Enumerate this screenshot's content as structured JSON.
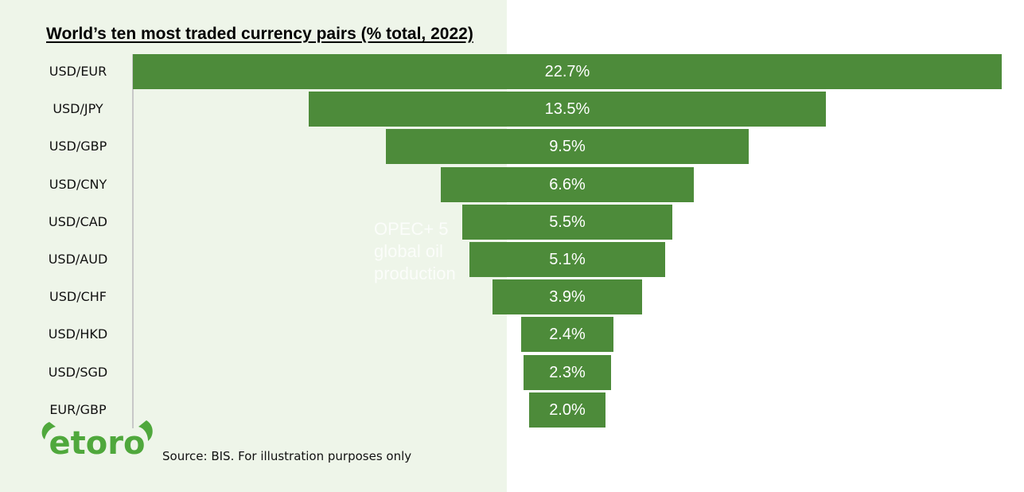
{
  "chart_data": {
    "type": "bar",
    "orientation": "horizontal",
    "layout": "centered funnel",
    "title": "World’s ten most traded currency pairs (% total, 2022)",
    "categories": [
      "USD/EUR",
      "USD/JPY",
      "USD/GBP",
      "USD/CNY",
      "USD/CAD",
      "USD/AUD",
      "USD/CHF",
      "USD/HKD",
      "USD/SGD",
      "EUR/GBP"
    ],
    "values": [
      22.7,
      13.5,
      9.5,
      6.6,
      5.5,
      5.1,
      3.9,
      2.4,
      2.3,
      2.0
    ],
    "data_labels": [
      "22.7%",
      "13.5%",
      "9.5%",
      "6.6%",
      "5.5%",
      "5.1%",
      "3.9%",
      "2.4%",
      "2.3%",
      "2.0%"
    ],
    "unit": "% total",
    "bar_color": "#4d8b3a",
    "label_color": "#ffffff"
  },
  "watermark_text": "OPEC+ 5\nglobal oil\nproduction",
  "logo": {
    "text": "etoro",
    "color": "#4fa83c",
    "icon": "etoro-bull-horns-logo"
  },
  "source_note": "Source: BIS. For illustration purposes only",
  "colors": {
    "panel_background": "#eef5e9",
    "page_background": "#ffffff"
  }
}
